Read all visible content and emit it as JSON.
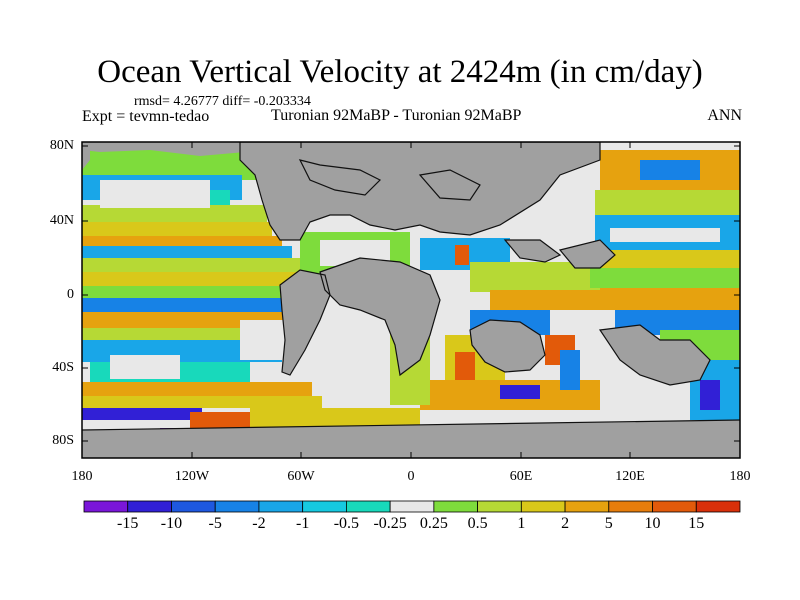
{
  "title": "Ocean Vertical Velocity at 2424m (in cm/day)",
  "stats": "rmsd= 4.26777 diff= -0.203334",
  "experiment": "Expt = tevmn-tedao",
  "comparison": "Turonian  92MaBP - Turonian  92MaBP",
  "season": "ANN",
  "lat_ticks": [
    "80N",
    "40N",
    "0",
    "40S",
    "80S"
  ],
  "lon_ticks": [
    "180",
    "120W",
    "60W",
    "0",
    "60E",
    "120E",
    "180"
  ],
  "colorbar": {
    "labels": [
      "-15",
      "-10",
      "-5",
      "-2",
      "-1",
      "-0.5",
      "-0.25",
      "0.25",
      "0.5",
      "1",
      "2",
      "5",
      "10",
      "15"
    ],
    "colors": [
      "#7a16d9",
      "#3120d6",
      "#1e58e0",
      "#1782e6",
      "#19a6e8",
      "#16c9e0",
      "#18d9bb",
      "#e8e8e8",
      "#7edc3c",
      "#b6d935",
      "#d9c81a",
      "#e6a20f",
      "#e67d0c",
      "#e25a0a",
      "#d9300a"
    ]
  },
  "colors": {
    "land": "#a0a0a0",
    "ocean_neutral": "#e8e8e8"
  }
}
